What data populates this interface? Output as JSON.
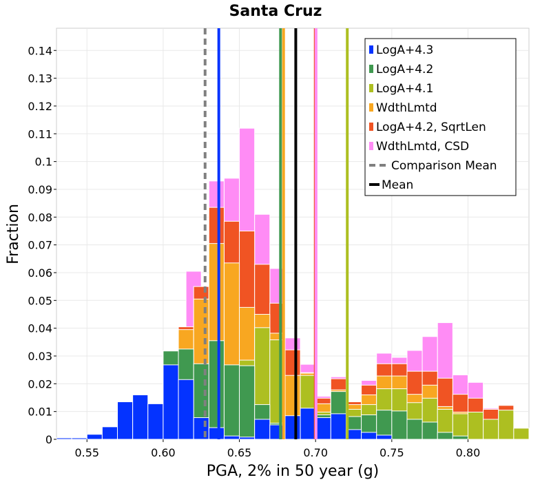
{
  "chart_data": {
    "type": "bar",
    "title": "Santa Cruz",
    "xlabel": "PGA, 2% in 50 year (g)",
    "ylabel": "Fraction",
    "xlim": [
      0.53,
      0.84
    ],
    "ylim": [
      0,
      0.148
    ],
    "bin_width": 0.01,
    "x_ticks": [
      {
        "value": 0.55,
        "label": "0.55"
      },
      {
        "value": 0.6,
        "label": "0.60"
      },
      {
        "value": 0.65,
        "label": "0.65"
      },
      {
        "value": 0.7,
        "label": "0.70"
      },
      {
        "value": 0.75,
        "label": "0.75"
      },
      {
        "value": 0.8,
        "label": "0.80"
      }
    ],
    "y_ticks": [
      {
        "value": 0,
        "label": "0"
      },
      {
        "value": 0.01,
        "label": "0.01"
      },
      {
        "value": 0.02,
        "label": "0.02"
      },
      {
        "value": 0.03,
        "label": "0.03"
      },
      {
        "value": 0.04,
        "label": "0.04"
      },
      {
        "value": 0.05,
        "label": "0.05"
      },
      {
        "value": 0.06,
        "label": "0.06"
      },
      {
        "value": 0.07,
        "label": "0.07"
      },
      {
        "value": 0.08,
        "label": "0.08"
      },
      {
        "value": 0.09,
        "label": "0.09"
      },
      {
        "value": 0.1,
        "label": "0.1"
      },
      {
        "value": 0.11,
        "label": "0.11"
      },
      {
        "value": 0.12,
        "label": "0.12"
      },
      {
        "value": 0.13,
        "label": "0.13"
      },
      {
        "value": 0.14,
        "label": "0.14"
      }
    ],
    "grid": true,
    "legend_position": "top-right",
    "series": [
      {
        "name": "WdthLmtd, CSD",
        "color": "#ff8cf5",
        "bars": [
          {
            "x": 0.62,
            "y": 0.0605
          },
          {
            "x": 0.625,
            "y": 0.0408
          },
          {
            "x": 0.635,
            "y": 0.093
          },
          {
            "x": 0.645,
            "y": 0.094
          },
          {
            "x": 0.655,
            "y": 0.112
          },
          {
            "x": 0.665,
            "y": 0.081
          },
          {
            "x": 0.675,
            "y": 0.0615
          },
          {
            "x": 0.685,
            "y": 0.0365
          },
          {
            "x": 0.695,
            "y": 0.027
          },
          {
            "x": 0.705,
            "y": 0.0155
          },
          {
            "x": 0.715,
            "y": 0.0225
          },
          {
            "x": 0.735,
            "y": 0.0212
          },
          {
            "x": 0.745,
            "y": 0.031
          },
          {
            "x": 0.755,
            "y": 0.0295
          },
          {
            "x": 0.765,
            "y": 0.032
          },
          {
            "x": 0.775,
            "y": 0.037
          },
          {
            "x": 0.785,
            "y": 0.042
          },
          {
            "x": 0.795,
            "y": 0.0232
          },
          {
            "x": 0.805,
            "y": 0.0205
          },
          {
            "x": 0.815,
            "y": 0.0112
          }
        ]
      },
      {
        "name": "LogA+4.2, SqrtLen",
        "color": "#f05423",
        "bars": [
          {
            "x": 0.615,
            "y": 0.0405
          },
          {
            "x": 0.625,
            "y": 0.055
          },
          {
            "x": 0.635,
            "y": 0.0835
          },
          {
            "x": 0.645,
            "y": 0.0785
          },
          {
            "x": 0.655,
            "y": 0.075
          },
          {
            "x": 0.665,
            "y": 0.063
          },
          {
            "x": 0.675,
            "y": 0.049
          },
          {
            "x": 0.685,
            "y": 0.0322
          },
          {
            "x": 0.695,
            "y": 0.024
          },
          {
            "x": 0.705,
            "y": 0.0148
          },
          {
            "x": 0.715,
            "y": 0.0218
          },
          {
            "x": 0.725,
            "y": 0.0135
          },
          {
            "x": 0.735,
            "y": 0.0195
          },
          {
            "x": 0.745,
            "y": 0.0272
          },
          {
            "x": 0.755,
            "y": 0.0272
          },
          {
            "x": 0.765,
            "y": 0.0245
          },
          {
            "x": 0.775,
            "y": 0.0245
          },
          {
            "x": 0.785,
            "y": 0.022
          },
          {
            "x": 0.795,
            "y": 0.0162
          },
          {
            "x": 0.805,
            "y": 0.0148
          },
          {
            "x": 0.815,
            "y": 0.0108
          },
          {
            "x": 0.825,
            "y": 0.0122
          }
        ]
      },
      {
        "name": "WdthLmtd",
        "color": "#f8a721",
        "bars": [
          {
            "x": 0.605,
            "y": 0.0318
          },
          {
            "x": 0.615,
            "y": 0.0395
          },
          {
            "x": 0.625,
            "y": 0.0505
          },
          {
            "x": 0.635,
            "y": 0.0705
          },
          {
            "x": 0.645,
            "y": 0.0635
          },
          {
            "x": 0.655,
            "y": 0.0475
          },
          {
            "x": 0.665,
            "y": 0.045
          },
          {
            "x": 0.675,
            "y": 0.0382
          },
          {
            "x": 0.685,
            "y": 0.023
          },
          {
            "x": 0.695,
            "y": 0.0238
          },
          {
            "x": 0.705,
            "y": 0.0128
          },
          {
            "x": 0.715,
            "y": 0.0178
          },
          {
            "x": 0.725,
            "y": 0.0125
          },
          {
            "x": 0.735,
            "y": 0.016
          },
          {
            "x": 0.745,
            "y": 0.0228
          },
          {
            "x": 0.755,
            "y": 0.0228
          },
          {
            "x": 0.765,
            "y": 0.0162
          },
          {
            "x": 0.775,
            "y": 0.0195
          },
          {
            "x": 0.785,
            "y": 0.0118
          },
          {
            "x": 0.795,
            "y": 0.0098
          }
        ]
      },
      {
        "name": "LogA+4.1",
        "color": "#adbf21",
        "bars": [
          {
            "x": 0.655,
            "y": 0.0285
          },
          {
            "x": 0.665,
            "y": 0.0402
          },
          {
            "x": 0.675,
            "y": 0.0358
          },
          {
            "x": 0.695,
            "y": 0.023
          },
          {
            "x": 0.705,
            "y": 0.0098
          },
          {
            "x": 0.715,
            "y": 0.0165
          },
          {
            "x": 0.725,
            "y": 0.0108
          },
          {
            "x": 0.735,
            "y": 0.0125
          },
          {
            "x": 0.745,
            "y": 0.0182
          },
          {
            "x": 0.755,
            "y": 0.0182
          },
          {
            "x": 0.765,
            "y": 0.0132
          },
          {
            "x": 0.775,
            "y": 0.0148
          },
          {
            "x": 0.785,
            "y": 0.0108
          },
          {
            "x": 0.795,
            "y": 0.0092
          },
          {
            "x": 0.805,
            "y": 0.0098
          },
          {
            "x": 0.815,
            "y": 0.0072
          },
          {
            "x": 0.825,
            "y": 0.0105
          },
          {
            "x": 0.835,
            "y": 0.004
          }
        ]
      },
      {
        "name": "LogA+4.2",
        "color": "#409950",
        "bars": [
          {
            "x": 0.585,
            "y": 0.0162
          },
          {
            "x": 0.605,
            "y": 0.0318
          },
          {
            "x": 0.615,
            "y": 0.0325
          },
          {
            "x": 0.625,
            "y": 0.0272
          },
          {
            "x": 0.635,
            "y": 0.0355
          },
          {
            "x": 0.645,
            "y": 0.0268
          },
          {
            "x": 0.655,
            "y": 0.0265
          },
          {
            "x": 0.665,
            "y": 0.0125
          },
          {
            "x": 0.675,
            "y": 0.0058
          },
          {
            "x": 0.705,
            "y": 0.0088
          },
          {
            "x": 0.715,
            "y": 0.0172
          },
          {
            "x": 0.725,
            "y": 0.0082
          },
          {
            "x": 0.735,
            "y": 0.0088
          },
          {
            "x": 0.745,
            "y": 0.0105
          },
          {
            "x": 0.755,
            "y": 0.0102
          },
          {
            "x": 0.765,
            "y": 0.0072
          },
          {
            "x": 0.775,
            "y": 0.0062
          },
          {
            "x": 0.785,
            "y": 0.0025
          },
          {
            "x": 0.795,
            "y": 0.0012
          }
        ]
      },
      {
        "name": "LogA+4.3",
        "color": "#0433ff",
        "bars": [
          {
            "x": 0.535,
            "y": 0.0005
          },
          {
            "x": 0.545,
            "y": 0.0005
          },
          {
            "x": 0.555,
            "y": 0.0018
          },
          {
            "x": 0.565,
            "y": 0.0045
          },
          {
            "x": 0.575,
            "y": 0.0135
          },
          {
            "x": 0.585,
            "y": 0.016
          },
          {
            "x": 0.595,
            "y": 0.0128
          },
          {
            "x": 0.605,
            "y": 0.0268
          },
          {
            "x": 0.615,
            "y": 0.0215
          },
          {
            "x": 0.625,
            "y": 0.0078
          },
          {
            "x": 0.635,
            "y": 0.0042
          },
          {
            "x": 0.645,
            "y": 0.0012
          },
          {
            "x": 0.655,
            "y": 0.0008
          },
          {
            "x": 0.665,
            "y": 0.0072
          },
          {
            "x": 0.675,
            "y": 0.0052
          },
          {
            "x": 0.685,
            "y": 0.0085
          },
          {
            "x": 0.695,
            "y": 0.0112
          },
          {
            "x": 0.705,
            "y": 0.0078
          },
          {
            "x": 0.715,
            "y": 0.0092
          },
          {
            "x": 0.725,
            "y": 0.0035
          },
          {
            "x": 0.735,
            "y": 0.0025
          },
          {
            "x": 0.745,
            "y": 0.0015
          }
        ]
      }
    ],
    "vertical_lines": [
      {
        "name": "LogA+4.3 mean",
        "x": 0.6365,
        "color": "#0433ff",
        "style": "solid"
      },
      {
        "name": "LogA+4.2 mean",
        "x": 0.677,
        "color": "#409950",
        "style": "solid"
      },
      {
        "name": "WdthLmtd mean",
        "x": 0.679,
        "color": "#f8a721",
        "style": "solid"
      },
      {
        "name": "LogA+4.2, SqrtLen mean",
        "x": 0.6998,
        "color": "#f05423",
        "style": "solid"
      },
      {
        "name": "WdthLmtd, CSD mean",
        "x": 0.7003,
        "color": "#ff8cf5",
        "style": "solid"
      },
      {
        "name": "LogA+4.1 mean",
        "x": 0.7208,
        "color": "#adbf21",
        "style": "solid"
      },
      {
        "name": "Comparison Mean",
        "x": 0.6275,
        "color": "#808080",
        "style": "dashed"
      },
      {
        "name": "Mean",
        "x": 0.687,
        "color": "#000000",
        "style": "solid"
      }
    ],
    "legend": [
      {
        "label": "LogA+4.3",
        "color": "#0433ff",
        "kind": "swatch"
      },
      {
        "label": "LogA+4.2",
        "color": "#409950",
        "kind": "swatch"
      },
      {
        "label": "LogA+4.1",
        "color": "#adbf21",
        "kind": "swatch"
      },
      {
        "label": "WdthLmtd",
        "color": "#f8a721",
        "kind": "swatch"
      },
      {
        "label": "LogA+4.2, SqrtLen",
        "color": "#f05423",
        "kind": "swatch"
      },
      {
        "label": "WdthLmtd, CSD",
        "color": "#ff8cf5",
        "kind": "swatch"
      },
      {
        "label": "Comparison Mean",
        "color": "#808080",
        "kind": "dashed"
      },
      {
        "label": "Mean",
        "color": "#000000",
        "kind": "line"
      }
    ]
  }
}
